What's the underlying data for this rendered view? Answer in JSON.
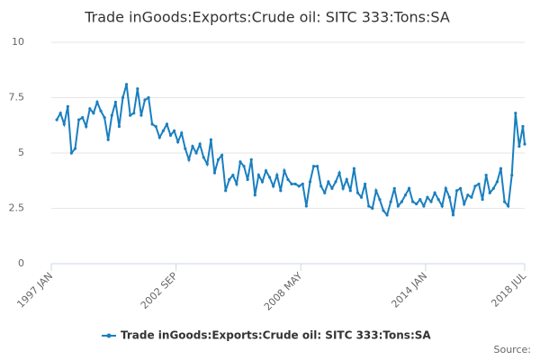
{
  "chart_data": {
    "type": "line",
    "title": "Trade inGoods:Exports:Crude oil: SITC 333:Tons:SA",
    "source": "Source:",
    "x": [
      "1997-04",
      "1997-06",
      "1997-08",
      "1997-10",
      "1997-12",
      "1998-02",
      "1998-04",
      "1998-06",
      "1998-08",
      "1998-10",
      "1998-12",
      "1999-02",
      "1999-04",
      "1999-06",
      "1999-08",
      "1999-10",
      "1999-12",
      "2000-02",
      "2000-04",
      "2000-06",
      "2000-08",
      "2000-10",
      "2000-12",
      "2001-02",
      "2001-04",
      "2001-06",
      "2001-08",
      "2001-10",
      "2001-12",
      "2002-02",
      "2002-04",
      "2002-06",
      "2002-08",
      "2002-10",
      "2002-12",
      "2003-02",
      "2003-04",
      "2003-06",
      "2003-08",
      "2003-10",
      "2003-12",
      "2004-02",
      "2004-04",
      "2004-06",
      "2004-08",
      "2004-10",
      "2004-12",
      "2005-02",
      "2005-04",
      "2005-06",
      "2005-08",
      "2005-10",
      "2005-12",
      "2006-02",
      "2006-04",
      "2006-06",
      "2006-08",
      "2006-10",
      "2006-12",
      "2007-02",
      "2007-04",
      "2007-06",
      "2007-08",
      "2007-10",
      "2007-12",
      "2008-02",
      "2008-04",
      "2008-06",
      "2008-08",
      "2008-10",
      "2008-12",
      "2009-02",
      "2009-04",
      "2009-06",
      "2009-08",
      "2009-10",
      "2009-12",
      "2010-02",
      "2010-04",
      "2010-06",
      "2010-08",
      "2010-10",
      "2010-12",
      "2011-02",
      "2011-04",
      "2011-06",
      "2011-08",
      "2011-10",
      "2011-12",
      "2012-02",
      "2012-04",
      "2012-06",
      "2012-08",
      "2012-10",
      "2012-12",
      "2013-02",
      "2013-04",
      "2013-06",
      "2013-08",
      "2013-10",
      "2013-12",
      "2014-02",
      "2014-04",
      "2014-06",
      "2014-08",
      "2014-10",
      "2014-12",
      "2015-02",
      "2015-04",
      "2015-06",
      "2015-08",
      "2015-10",
      "2015-12",
      "2016-02",
      "2016-04",
      "2016-06",
      "2016-08",
      "2016-10",
      "2016-12",
      "2017-02",
      "2017-04",
      "2017-06",
      "2017-08",
      "2017-10",
      "2017-12",
      "2018-02",
      "2018-04",
      "2018-06",
      "2018-07"
    ],
    "series": [
      {
        "name": "Trade inGoods:Exports:Crude oil: SITC 333:Tons:SA",
        "color": "#1a7fbf",
        "values": [
          6.5,
          6.8,
          6.3,
          7.1,
          5.0,
          5.2,
          6.5,
          6.6,
          6.2,
          7.0,
          6.8,
          7.3,
          6.9,
          6.6,
          5.6,
          6.7,
          7.3,
          6.2,
          7.5,
          8.1,
          6.7,
          6.8,
          7.9,
          6.7,
          7.4,
          7.5,
          6.3,
          6.2,
          5.7,
          6.0,
          6.3,
          5.8,
          6.0,
          5.5,
          5.9,
          5.2,
          4.7,
          5.3,
          5.0,
          5.4,
          4.8,
          4.5,
          5.6,
          4.1,
          4.7,
          4.9,
          3.3,
          3.8,
          4.0,
          3.6,
          4.6,
          4.4,
          3.8,
          4.7,
          3.1,
          4.0,
          3.7,
          4.2,
          3.9,
          3.5,
          4.0,
          3.3,
          4.2,
          3.8,
          3.6,
          3.6,
          3.5,
          3.6,
          2.6,
          3.7,
          4.4,
          4.4,
          3.5,
          3.2,
          3.7,
          3.4,
          3.7,
          4.1,
          3.4,
          3.8,
          3.3,
          4.3,
          3.2,
          3.0,
          3.6,
          2.6,
          2.5,
          3.3,
          2.9,
          2.4,
          2.2,
          2.8,
          3.4,
          2.6,
          2.8,
          3.1,
          3.4,
          2.8,
          2.7,
          2.9,
          2.6,
          3.0,
          2.8,
          3.2,
          2.9,
          2.6,
          3.4,
          3.0,
          2.2,
          3.3,
          3.4,
          2.7,
          3.1,
          3.0,
          3.5,
          3.6,
          2.9,
          4.0,
          3.2,
          3.4,
          3.7,
          4.3,
          2.8,
          2.6,
          4.0,
          6.8,
          5.3,
          6.2,
          5.4
        ]
      }
    ],
    "xlim": [
      "1997-01",
      "2018-07"
    ],
    "xticks": [
      {
        "value": "1997-01",
        "label": "1997 JAN"
      },
      {
        "value": "2002-09",
        "label": "2002 SEP"
      },
      {
        "value": "2008-05",
        "label": "2008 MAY"
      },
      {
        "value": "2014-01",
        "label": "2014 JAN"
      },
      {
        "value": "2018-07",
        "label": "2018 JUL"
      }
    ],
    "ylim": [
      0,
      10
    ],
    "yticks": [
      0,
      2.5,
      5,
      7.5,
      10
    ],
    "grid": true
  }
}
